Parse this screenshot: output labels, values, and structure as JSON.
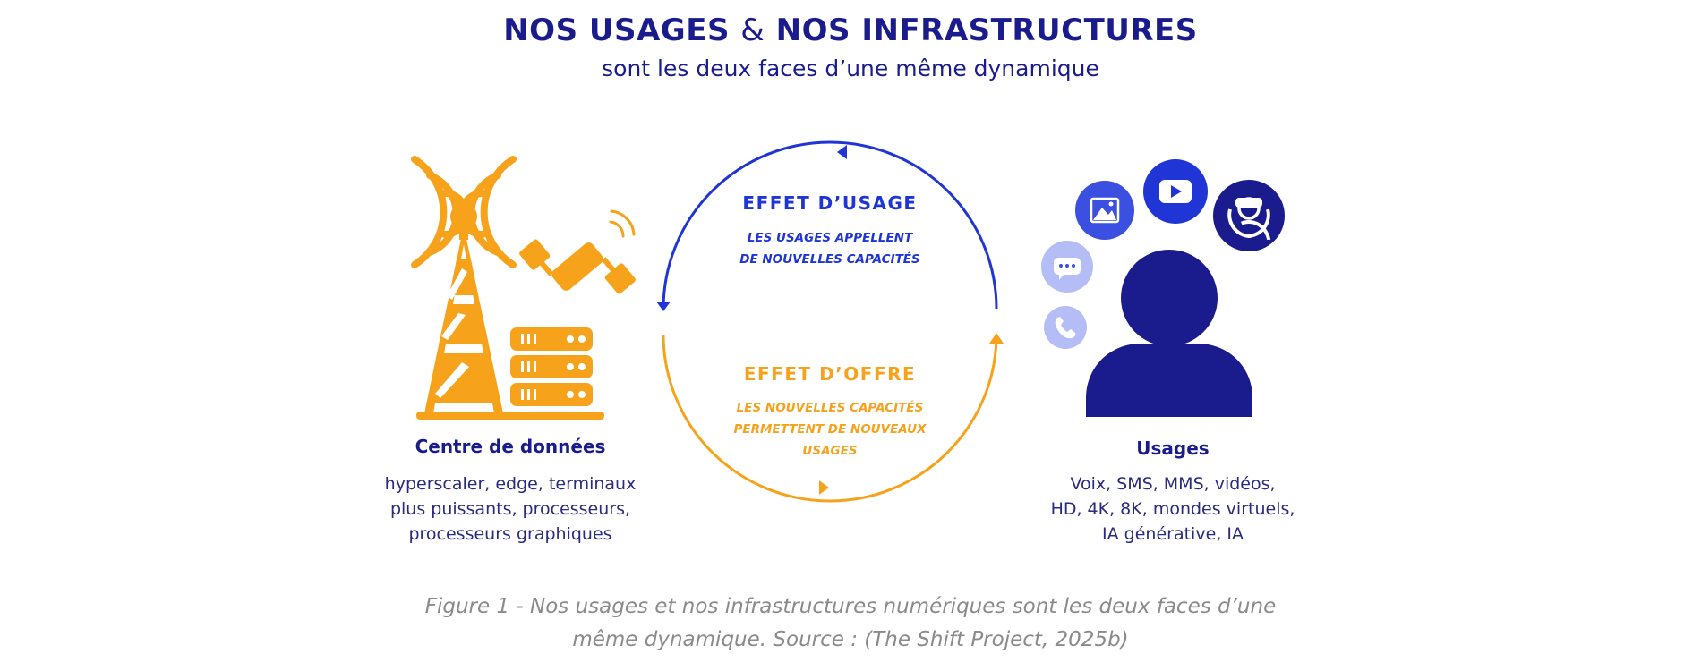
{
  "header": {
    "title_part1": "NOS USAGES",
    "title_amp": "&",
    "title_part2": "NOS INFRASTRUCTURES",
    "subtitle": "sont les deux faces d’une même dynamique"
  },
  "left": {
    "heading": "Centre de données",
    "desc_lines": [
      "hyperscaler, edge, terminaux",
      "plus puissants, processeurs,",
      "processeurs graphiques"
    ]
  },
  "right": {
    "heading": "Usages",
    "desc_lines": [
      "Voix, SMS, MMS, vidéos,",
      "HD, 4K, 8K, mondes virtuels,",
      "IA générative, IA"
    ]
  },
  "cycle": {
    "usage_title": "EFFET D’USAGE",
    "usage_lines": [
      "LES USAGES APPELLENT",
      "DE NOUVELLES CAPACITÉS"
    ],
    "offre_title": "EFFET D’OFFRE",
    "offre_lines": [
      "LES NOUVELLES CAPACITÉS",
      "PERMETTENT DE NOUVEAUX",
      "USAGES"
    ]
  },
  "icons": {
    "left": [
      "antenna-tower-icon",
      "satellite-icon",
      "server-stack-icon"
    ],
    "right": [
      "user-icon",
      "image-icon",
      "video-play-icon",
      "vr-headset-icon",
      "chat-bubble-icon",
      "phone-icon"
    ]
  },
  "colors": {
    "navy": "#1a1b8c",
    "blue": "#1f35d6",
    "orange": "#f7a21b",
    "light_blue": "#b4bdf5",
    "mid_blue": "#3b4fe0",
    "caption_gray": "#8a8a8a"
  },
  "caption": {
    "line1": "Figure 1 - Nos usages et nos infrastructures numériques sont les deux faces d’une",
    "line2": "même dynamique. Source : (The Shift Project, 2025b)"
  }
}
